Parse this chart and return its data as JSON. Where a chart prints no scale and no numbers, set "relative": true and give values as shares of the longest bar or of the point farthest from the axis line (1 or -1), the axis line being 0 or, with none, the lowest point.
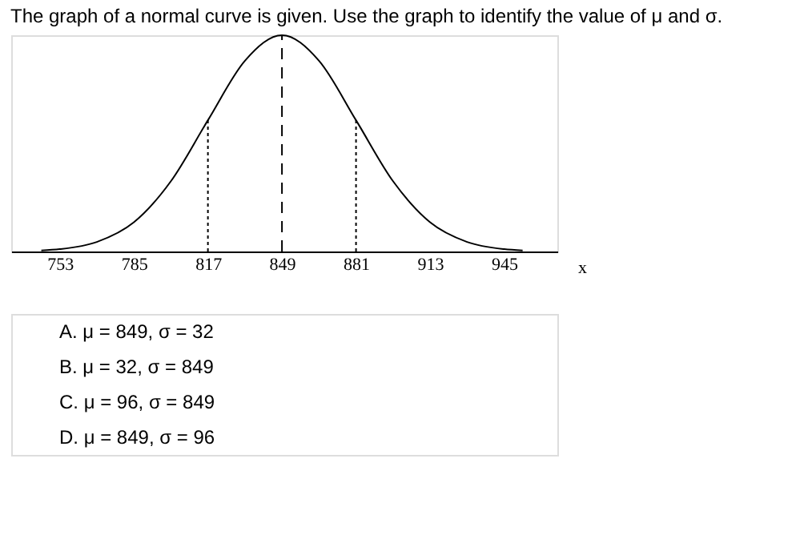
{
  "chart_data": {
    "type": "line",
    "title": "The graph of a normal curve is given. Use the graph to identify the value of μ and σ.",
    "xlabel": "x",
    "x": [
      745,
      753,
      769,
      785,
      801,
      817,
      833,
      849,
      865,
      881,
      897,
      913,
      929,
      945,
      953
    ],
    "series": [
      {
        "color": "#000000",
        "values": [
          0.005,
          0.011,
          0.044,
          0.135,
          0.325,
          0.607,
          0.882,
          1,
          0.882,
          0.607,
          0.325,
          0.135,
          0.044,
          0.011,
          0.005
        ]
      }
    ],
    "relative": true,
    "xlim": [
      732,
      968
    ],
    "xticks": [
      753,
      785,
      817,
      849,
      881,
      913,
      945
    ],
    "grid": false,
    "marker": "none",
    "line_style": "solid",
    "ref_lines": [
      {
        "axis": "x",
        "value": 817,
        "line_style": "dotted",
        "color": "#000000"
      },
      {
        "axis": "x",
        "value": 849,
        "line_style": "dashed",
        "color": "#000000"
      },
      {
        "axis": "x",
        "value": 881,
        "line_style": "dotted",
        "color": "#000000"
      }
    ],
    "annotations": [
      "A.  μ = 849, σ = 32",
      "B.  μ = 32, σ = 849",
      "C.  μ = 96, σ = 849",
      "D.  μ = 849, σ = 96"
    ]
  }
}
